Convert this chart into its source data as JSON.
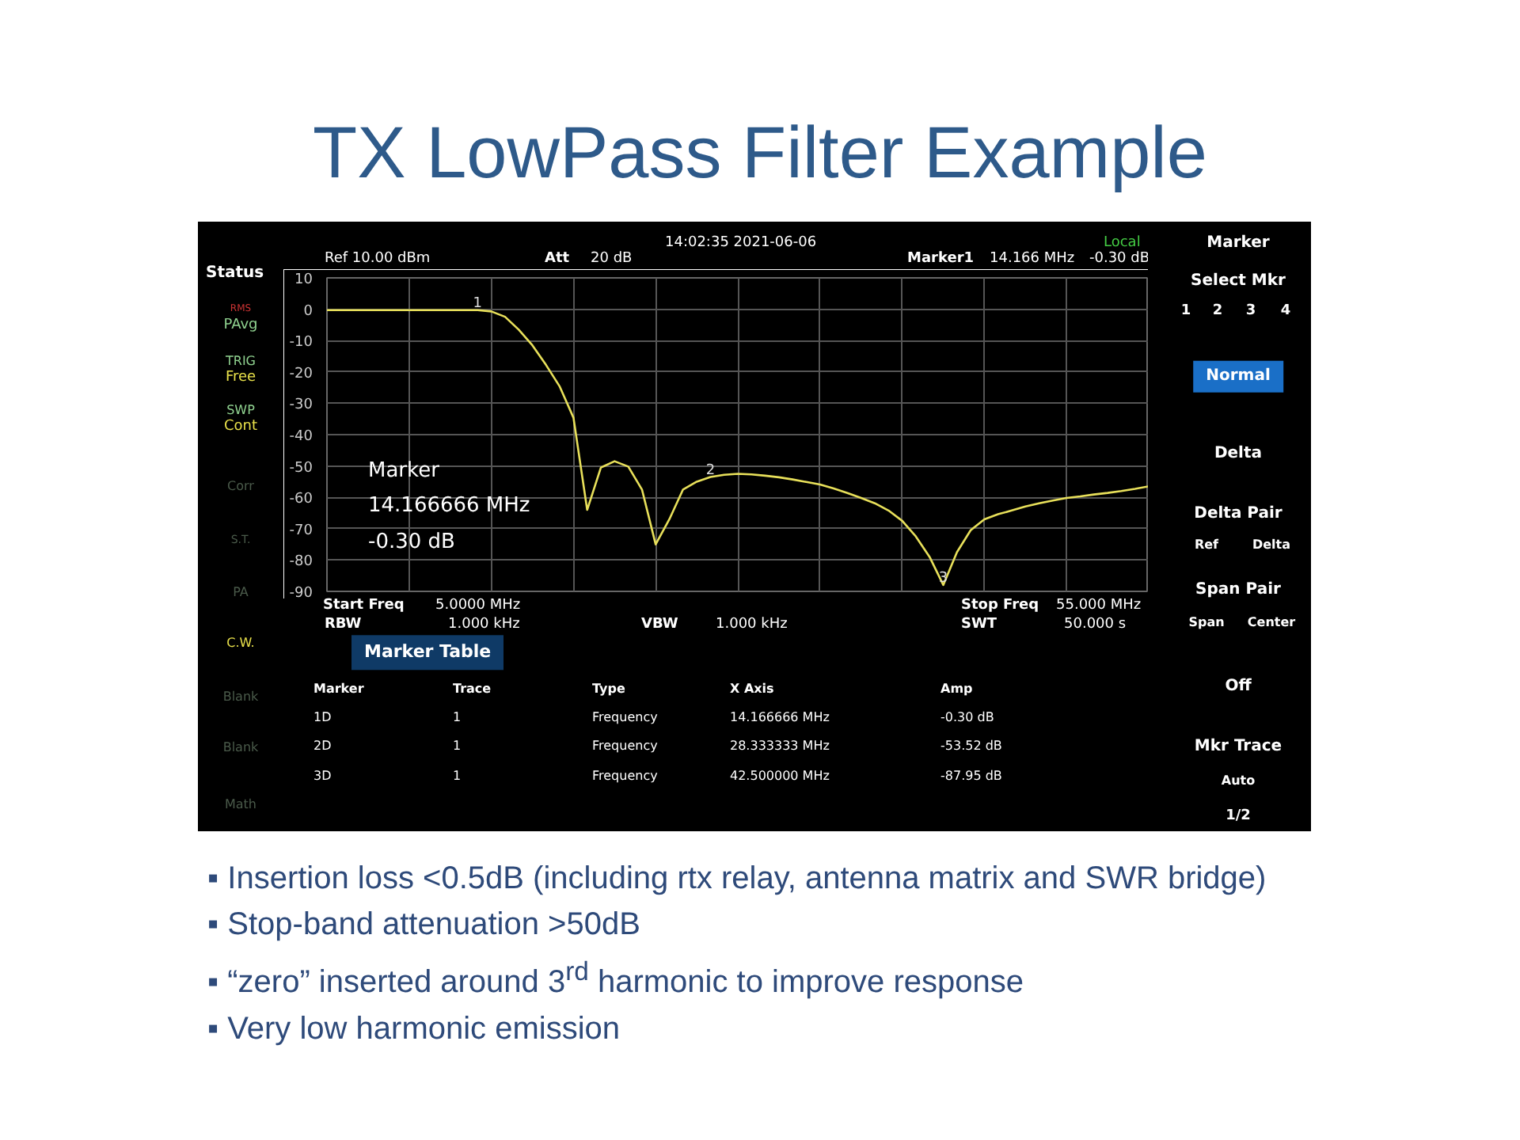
{
  "chart_data": {
    "type": "line",
    "title": "TX LowPass Filter Example",
    "categories": [
      null,
      null,
      null,
      null,
      null,
      null,
      null,
      null,
      null,
      null,
      null,
      null,
      null,
      null,
      null,
      null,
      null,
      null,
      null,
      null,
      null,
      null,
      null,
      null,
      null,
      null,
      null,
      null,
      null,
      null,
      null,
      null,
      null,
      null,
      null,
      null,
      null,
      null,
      null,
      null,
      null,
      null,
      null,
      null,
      null,
      null,
      null,
      null,
      null,
      null,
      null,
      null,
      null,
      null,
      null,
      null,
      null,
      null,
      null,
      null,
      null
    ],
    "ylim": [
      -90,
      10
    ],
    "yticks": [
      10,
      0,
      -10,
      -20,
      -30,
      -40,
      -50,
      -60,
      -70,
      -80,
      -90
    ],
    "grid": true,
    "tick_labels": "y",
    "series": [
      {
        "color": "#e8e05a",
        "values": [
          -0.3,
          -0.3,
          -0.3,
          -0.3,
          -0.3,
          -0.3,
          -0.3,
          -0.3,
          -0.3,
          -0.3,
          -0.3,
          -0.3,
          -0.7,
          -2.4,
          -6.5,
          -11.5,
          -17.8,
          -24.7,
          -34.6,
          -64,
          -50.5,
          -48.5,
          -50.2,
          -57.5,
          -75,
          -67,
          -57.5,
          -55,
          -53.52,
          -52.8,
          -52.5,
          -52.7,
          -53.1,
          -53.6,
          -54.3,
          -55.1,
          -55.9,
          -57.2,
          -58.6,
          -60.2,
          -61.9,
          -64.2,
          -67.5,
          -72.5,
          -79,
          -87.95,
          -77.5,
          -70.5,
          -67,
          -65.4,
          -64.2,
          -62.9,
          -61.9,
          -61,
          -60.2,
          -59.7,
          -59.1,
          -58.6,
          -58,
          -57.3,
          -56.5
        ]
      }
    ],
    "annotations": [
      "14:02:35 2021-06-06",
      "Local",
      "Status",
      "Ref 10.00 dBm",
      "Att",
      "20 dB",
      "Marker1",
      "14.166 MHz",
      "-0.30 dB",
      "Marker",
      "14.166666 MHz",
      "-0.30 dB",
      "Start Freq",
      "5.0000 MHz",
      "Stop Freq",
      "55.000 MHz",
      "RBW",
      "1.000 kHz",
      "VBW",
      "1.000 kHz",
      "SWT",
      "50.000 s",
      "Marker Table",
      "Marker",
      "Trace",
      "Type",
      "X Axis",
      "Amp",
      "1D",
      "1",
      "Frequency",
      "14.166666 MHz",
      "-0.30 dB",
      "2D",
      "1",
      "Frequency",
      "28.333333 MHz",
      "-53.52 dB",
      "3D",
      "1",
      "Frequency",
      "42.500000 MHz",
      "-87.95 dB",
      "RMS",
      "PAvg",
      "TRIG",
      "Free",
      "SWP",
      "Cont",
      "Corr",
      "S.T.",
      "PA",
      "C.W.",
      "Blank",
      "Blank",
      "Math",
      "Marker",
      "Select Mkr",
      "1",
      "2",
      "3",
      "4",
      "Normal",
      "Delta",
      "Delta Pair",
      "Ref",
      "Delta",
      "Span Pair",
      "Span",
      "Center",
      "Off",
      "Mkr Trace",
      "Auto",
      "1/2",
      "▪ Insertion loss <0.5dB (including rtx relay, antenna matrix and SWR bridge)",
      "▪ Stop-band attenuation >50dB",
      "▪ “zero” inserted around 3$^{rd}$ harmonic to improve response",
      "▪ Very low harmonic emission",
      {
        "text": "1",
        "y": -0.3
      },
      {
        "text": "2",
        "y": -53.52
      },
      {
        "text": "3",
        "y": -87.95
      }
    ]
  }
}
